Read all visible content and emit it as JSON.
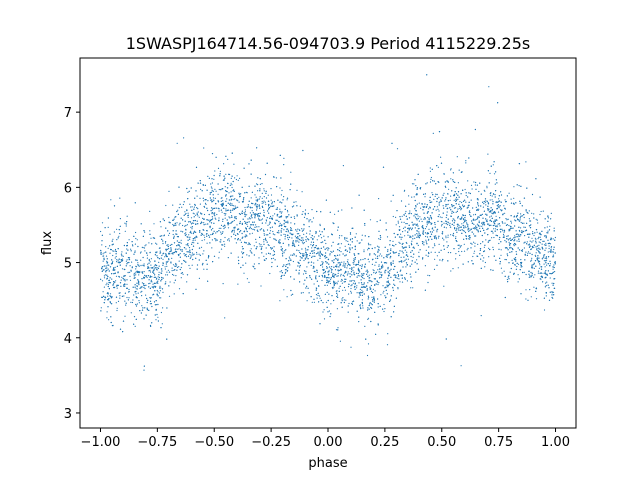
{
  "chart_data": {
    "type": "scatter",
    "title": "1SWASPJ164714.56-094703.9 Period 4115229.25s",
    "xlabel": "phase",
    "ylabel": "flux",
    "xlim": [
      -1.09,
      1.09
    ],
    "ylim": [
      2.8,
      7.72
    ],
    "xticks": [
      -1.0,
      -0.75,
      -0.5,
      -0.25,
      0.0,
      0.25,
      0.5,
      0.75,
      1.0
    ],
    "xtick_labels": [
      "−1.00",
      "−0.75",
      "−0.50",
      "−0.25",
      "0.00",
      "0.25",
      "0.50",
      "0.75",
      "1.00"
    ],
    "yticks": [
      3,
      4,
      5,
      6,
      7
    ],
    "ytick_labels": [
      "3",
      "4",
      "5",
      "6",
      "7"
    ],
    "grid": false,
    "marker_color": "#1f77b4",
    "series": [
      {
        "description_curve_phase": [
          -1.0,
          -0.95,
          -0.9,
          -0.85,
          -0.8,
          -0.75,
          -0.7,
          -0.65,
          -0.6,
          -0.55,
          -0.5,
          -0.45,
          -0.4,
          -0.35,
          -0.3,
          -0.25,
          -0.2,
          -0.15,
          -0.1,
          -0.05,
          0.0
        ],
        "description_curve_flux": [
          4.95,
          4.85,
          4.9,
          4.8,
          4.75,
          4.85,
          5.1,
          5.3,
          5.45,
          5.55,
          5.65,
          5.7,
          5.6,
          5.5,
          5.6,
          5.55,
          5.4,
          5.25,
          5.15,
          5.05,
          4.95
        ]
      }
    ]
  }
}
